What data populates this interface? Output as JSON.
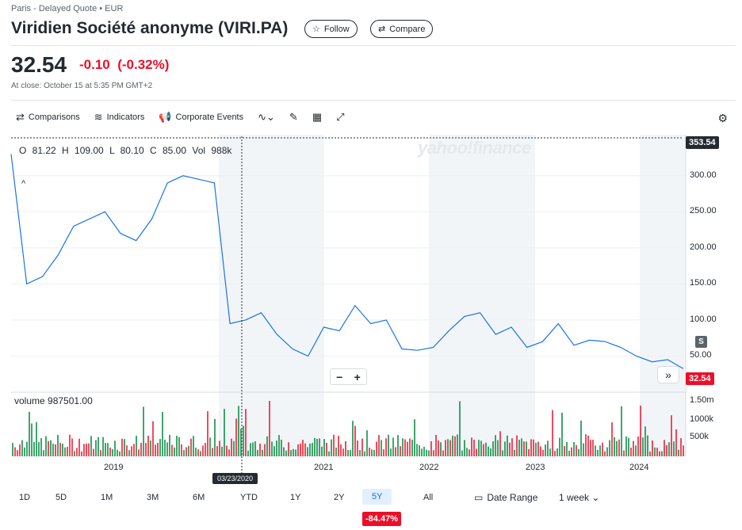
{
  "header": {
    "exchange": "Paris - Delayed Quote • EUR",
    "title": "Viridien Société anonyme (VIRI.PA)",
    "follow_label": "Follow",
    "compare_label": "Compare"
  },
  "quote": {
    "price": "32.54",
    "change": "-0.10",
    "change_pct": "(-0.32%)",
    "at_close": "At close: October 15 at 5:35 PM GMT+2"
  },
  "toolbar": {
    "comparisons": "Comparisons",
    "indicators": "Indicators",
    "corporate_events": "Corporate Events"
  },
  "chart_readout": {
    "ohlc": "O 81.22  H 109.00  L 80.10  C 85.00  Vol 988k",
    "volume": "volume  987501.00",
    "watermark": "yahoo!finance",
    "crosshair_date": "03/23/2020"
  },
  "price_axis": [
    "300.00",
    "250.00",
    "200.00",
    "150.00",
    "100.00",
    "50.00"
  ],
  "volume_axis": [
    "1.50m",
    "1000k",
    "500k"
  ],
  "top_tag": "353.54",
  "last_tag": "32.54",
  "s_marker": "S",
  "x_axis": [
    "2019",
    "2021",
    "2022",
    "2023",
    "2024"
  ],
  "ranges": [
    "1D",
    "5D",
    "1M",
    "3M",
    "6M",
    "YTD",
    "1Y",
    "2Y",
    "5Y",
    "All"
  ],
  "selected_range": "5Y",
  "range_change": "-84.47%",
  "date_range_label": "Date Range",
  "interval": "1 week",
  "colors": {
    "up": "#00873c",
    "down": "#eb0f29",
    "line": "#1a73e8",
    "shade": "#f2f5f8"
  },
  "chart_data": {
    "type": "line",
    "x": [
      "2018-03",
      "2018-05",
      "2018-06",
      "2018-08",
      "2018-10",
      "2018-12",
      "2019-02",
      "2019-04",
      "2019-06",
      "2019-08",
      "2019-10",
      "2019-12",
      "2020-01",
      "2020-02",
      "2020-03",
      "2020-04",
      "2020-06",
      "2020-08",
      "2020-10",
      "2020-11",
      "2020-12",
      "2021-02",
      "2021-04",
      "2021-06",
      "2021-08",
      "2021-10",
      "2021-12",
      "2022-02",
      "2022-04",
      "2022-06",
      "2022-08",
      "2022-10",
      "2022-12",
      "2023-02",
      "2023-04",
      "2023-06",
      "2023-08",
      "2023-10",
      "2023-12",
      "2024-02",
      "2024-04",
      "2024-06",
      "2024-08",
      "2024-10"
    ],
    "price": [
      330,
      150,
      160,
      190,
      230,
      240,
      250,
      220,
      210,
      240,
      290,
      300,
      295,
      290,
      95,
      100,
      110,
      80,
      60,
      50,
      90,
      85,
      120,
      95,
      100,
      60,
      58,
      62,
      85,
      105,
      110,
      80,
      90,
      62,
      70,
      95,
      65,
      72,
      70,
      62,
      50,
      42,
      45,
      32.54
    ],
    "ylim": [
      0,
      353.54
    ],
    "y_ticks": [
      50,
      100,
      150,
      200,
      250,
      300
    ]
  }
}
